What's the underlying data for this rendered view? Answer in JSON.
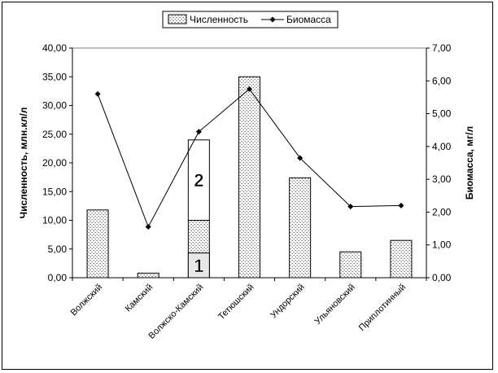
{
  "chart_data": {
    "type": "bar",
    "categories": [
      "Волжский",
      "Камский",
      "Волжско-Камский",
      "Тетюшский",
      "Ундорский",
      "Ульяновский",
      "Приплотинный"
    ],
    "series": [
      {
        "name": "Численность",
        "chart": "bar",
        "axis": "left",
        "values": [
          11.8,
          0.8,
          10.0,
          35.0,
          17.4,
          4.5,
          6.5
        ]
      },
      {
        "name": "Биомасса",
        "chart": "line",
        "axis": "right",
        "values": [
          5.6,
          1.55,
          4.45,
          5.75,
          3.65,
          2.17,
          2.2
        ]
      }
    ],
    "stacked_segment": {
      "category": "Волжско-Камский",
      "from": 10.0,
      "to": 24.0
    },
    "callout_boxes": [
      {
        "category": "Волжско-Камский",
        "from": 0.0,
        "to": 4.3,
        "label": "1"
      },
      {
        "category": "Волжско-Камский",
        "from": 10.0,
        "to": 24.0,
        "label": "2"
      }
    ],
    "ylabel": "Численность, млн.кл/л",
    "y2label": "Биомасса, мг/л",
    "ylim": [
      0,
      40
    ],
    "y2lim": [
      0,
      7
    ],
    "yticks": [
      "0,00",
      "5,00",
      "10,00",
      "15,00",
      "20,00",
      "25,00",
      "30,00",
      "35,00",
      "40,00"
    ],
    "y2ticks": [
      "0,00",
      "1,00",
      "2,00",
      "3,00",
      "4,00",
      "5,00",
      "6,00",
      "7,00"
    ],
    "legend_position": "top-center",
    "grid": false
  }
}
